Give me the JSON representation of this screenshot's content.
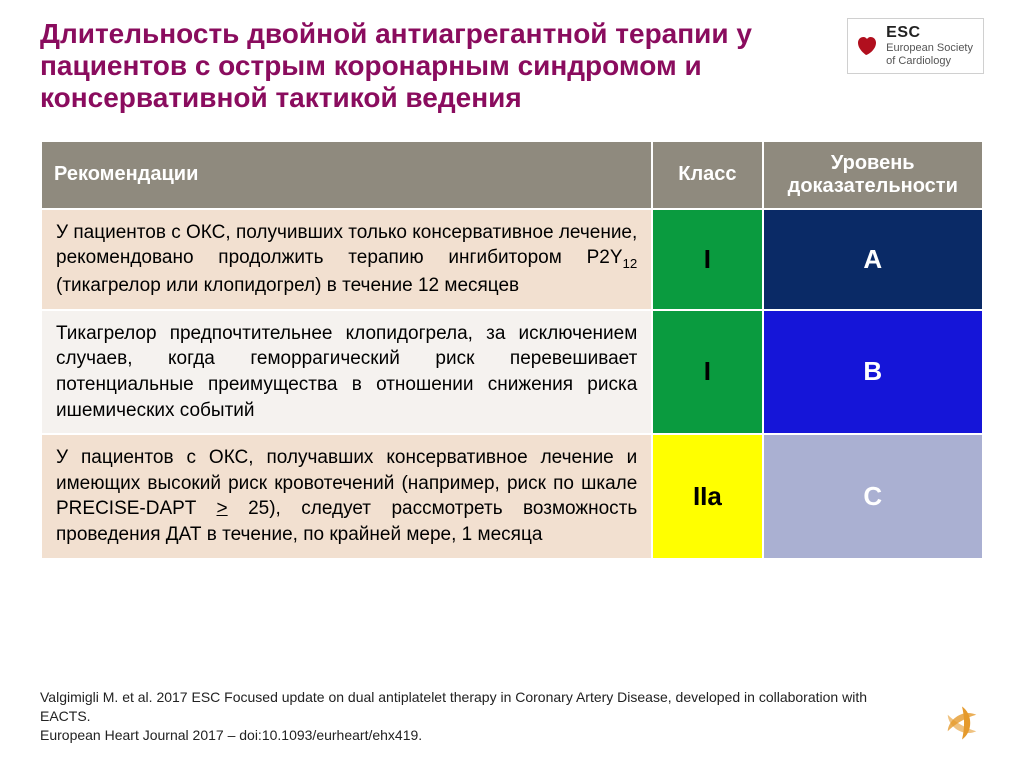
{
  "title": "Длительность двойной антиагрегантной терапии у пациентов с острым коронарным синдромом и консервативной тактикой ведения",
  "logo": {
    "abbr": "ESC",
    "line1": "European Society",
    "line2": "of Cardiology"
  },
  "columns": {
    "rec": "Рекомендации",
    "klass": "Класс",
    "level": "Уровень доказательности"
  },
  "widths": {
    "rec": 610,
    "klass": 110,
    "level": 220
  },
  "rows": [
    {
      "rec_html": "У пациентов с ОКС, получивших только консервативное лечение, рекомендовано продолжить терапию ингибитором P2Y<span class='sub'>12</span> (тикагрелор или клопидогрел) в течение 12 месяцев",
      "rec_bg": "#f2e0d0",
      "klass": "I",
      "klass_bg": "#0a9b3f",
      "klass_fg": "#000000",
      "level": "A",
      "level_bg": "#0a2a66",
      "level_fg": "#ffffff"
    },
    {
      "rec_html": "Тикагрелор предпочтительнее клопидогрела, за исключением случаев, когда геморрагический риск перевешивает потенциальные преимущества в отношении снижения риска ишемических событий",
      "rec_bg": "#f5f2ef",
      "klass": "I",
      "klass_bg": "#0a9b3f",
      "klass_fg": "#000000",
      "level": "B",
      "level_bg": "#1515d8",
      "level_fg": "#ffffff"
    },
    {
      "rec_html": "У пациентов с ОКС, получавших консервативное лечение и имеющих высокий риск кровотечений (например, риск по шкале PRECISE-DAPT <u>&gt;</u> 25), следует рассмотреть возможность проведения ДАТ в течение, по крайней мере, 1 месяца",
      "rec_bg": "#f2e0d0",
      "klass": "IIa",
      "klass_bg": "#ffff00",
      "klass_fg": "#000000",
      "level": "C",
      "level_bg": "#aab0d2",
      "level_fg": "#ffffff"
    }
  ],
  "citation": {
    "line1": "Valgimigli M. et al. 2017 ESC Focused update on dual antiplatelet therapy in Coronary Artery Disease, developed in collaboration with EACTS.",
    "line2": "European Heart Journal 2017 – doi:10.1093/eurheart/ehx419."
  }
}
